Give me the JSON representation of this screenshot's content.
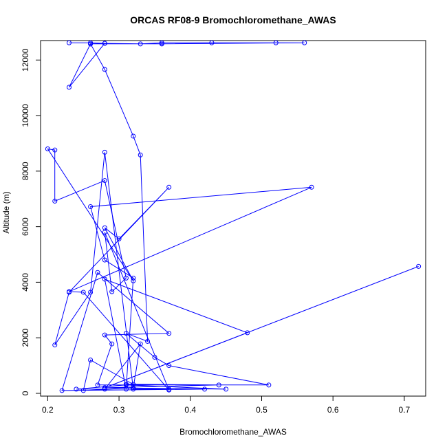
{
  "chart_data": {
    "type": "line",
    "title": "ORCAS RF08-9 Bromochloromethane_AWAS",
    "xlabel": "Bromochloromethane_AWAS",
    "ylabel": "Altitude (m)",
    "xlim": [
      0.19,
      0.73
    ],
    "ylim": [
      -100,
      12700
    ],
    "xticks": [
      0.2,
      0.3,
      0.4,
      0.5,
      0.6,
      0.7
    ],
    "xtick_labels": [
      "0.2",
      "0.3",
      "0.4",
      "0.5",
      "0.6",
      "0.7"
    ],
    "yticks": [
      0,
      2000,
      4000,
      6000,
      8000,
      10000,
      12000
    ],
    "ytick_labels": [
      "0",
      "2000",
      "4000",
      "6000",
      "8000",
      "10000",
      "12000"
    ],
    "grid": false,
    "marker": "open-circle",
    "color": "#0000ff",
    "series": [
      {
        "x": [
          0.23,
          0.26,
          0.28,
          0.33,
          0.36,
          0.43,
          0.52,
          0.56,
          0.36,
          0.26,
          0.28,
          0.23,
          0.26,
          0.28,
          0.32,
          0.33,
          0.34,
          0.31,
          0.35,
          0.37,
          0.51,
          0.27,
          0.29,
          0.28,
          0.37,
          0.27,
          0.22,
          0.42,
          0.28,
          0.44,
          0.31,
          0.32,
          0.26,
          0.25,
          0.32,
          0.33,
          0.28,
          0.24,
          0.31,
          0.45,
          0.28,
          0.72,
          0.28,
          0.48,
          0.28,
          0.31,
          0.32,
          0.28,
          0.26,
          0.57,
          0.23,
          0.25,
          0.37,
          0.28,
          0.29,
          0.31,
          0.28,
          0.21,
          0.21,
          0.2,
          0.32,
          0.28,
          0.3,
          0.37,
          0.23,
          0.21,
          0.26,
          0.28,
          0.32,
          0.37
        ],
        "y": [
          12620,
          12620,
          12600,
          12580,
          12620,
          12620,
          12620,
          12620,
          12580,
          12580,
          12600,
          11020,
          12580,
          11660,
          9260,
          8580,
          1870,
          2160,
          1300,
          1000,
          300,
          300,
          1780,
          2100,
          2160,
          4350,
          100,
          150,
          200,
          300,
          330,
          320,
          1200,
          100,
          200,
          1780,
          150,
          150,
          300,
          150,
          200,
          4570,
          200,
          2180,
          4110,
          150,
          4150,
          4800,
          6720,
          7420,
          3660,
          3640,
          120,
          5800,
          3660,
          4150,
          7660,
          6920,
          8760,
          8800,
          4050,
          5960,
          5560,
          7420,
          3640,
          1740,
          3640,
          8680,
          150,
          150
        ]
      }
    ]
  }
}
